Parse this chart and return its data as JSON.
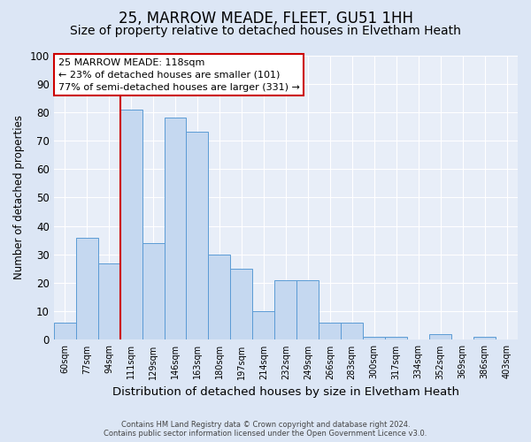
{
  "title": "25, MARROW MEADE, FLEET, GU51 1HH",
  "subtitle": "Size of property relative to detached houses in Elvetham Heath",
  "xlabel": "Distribution of detached houses by size in Elvetham Heath",
  "ylabel": "Number of detached properties",
  "bar_labels": [
    "60sqm",
    "77sqm",
    "94sqm",
    "111sqm",
    "129sqm",
    "146sqm",
    "163sqm",
    "180sqm",
    "197sqm",
    "214sqm",
    "232sqm",
    "249sqm",
    "266sqm",
    "283sqm",
    "300sqm",
    "317sqm",
    "334sqm",
    "352sqm",
    "369sqm",
    "386sqm",
    "403sqm"
  ],
  "bar_values": [
    6,
    36,
    27,
    81,
    34,
    78,
    73,
    30,
    25,
    10,
    21,
    21,
    6,
    6,
    1,
    1,
    0,
    2,
    0,
    1,
    0
  ],
  "bar_color": "#c5d8f0",
  "bar_edge_color": "#5b9bd5",
  "vline_x_index": 3,
  "vline_color": "#cc0000",
  "ylim": [
    0,
    100
  ],
  "yticks": [
    0,
    10,
    20,
    30,
    40,
    50,
    60,
    70,
    80,
    90,
    100
  ],
  "annotation_line1": "25 MARROW MEADE: 118sqm",
  "annotation_line2": "← 23% of detached houses are smaller (101)",
  "annotation_line3": "77% of semi-detached houses are larger (331) →",
  "annotation_box_color": "#ffffff",
  "annotation_box_edge": "#cc0000",
  "footer1": "Contains HM Land Registry data © Crown copyright and database right 2024.",
  "footer2": "Contains public sector information licensed under the Open Government Licence v3.0.",
  "bg_color": "#dce6f5",
  "plot_bg_color": "#e8eef8",
  "grid_color": "#ffffff",
  "title_fontsize": 12,
  "subtitle_fontsize": 10,
  "bar_width": 1.0
}
